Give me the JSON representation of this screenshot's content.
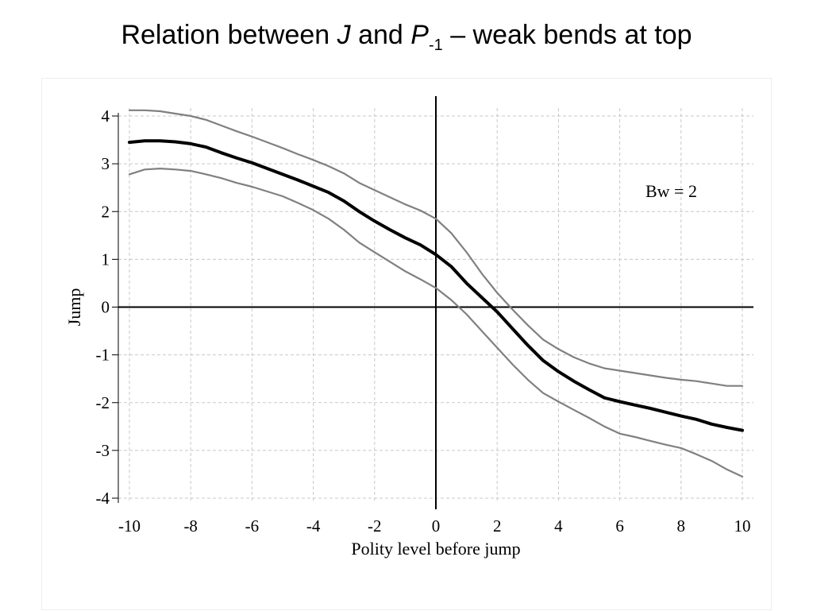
{
  "slide": {
    "title_part1": "Relation between ",
    "title_j": "J",
    "title_part2": " and ",
    "title_p": "P",
    "title_sub": "-1",
    "title_part3": " – weak bends at top"
  },
  "chart_data": {
    "type": "line",
    "title": "",
    "xlabel": "Polity level before jump",
    "ylabel": "Jump",
    "xlim": [
      -10,
      10
    ],
    "ylim": [
      -4,
      4
    ],
    "xticks": [
      -10,
      -8,
      -6,
      -4,
      -2,
      0,
      2,
      4,
      6,
      8,
      10
    ],
    "yticks": [
      4,
      3,
      2,
      1,
      0,
      -1,
      -2,
      -3,
      -4
    ],
    "grid": true,
    "annotation": "Bw = 2",
    "reference_lines": {
      "x": 0,
      "y": 0
    },
    "series": [
      {
        "role": "estimate",
        "color": "#000000",
        "x": [
          -10,
          -9.5,
          -9,
          -8.5,
          -8,
          -7.5,
          -7,
          -6.5,
          -6,
          -5.5,
          -5,
          -4.5,
          -4,
          -3.5,
          -3,
          -2.5,
          -2,
          -1.5,
          -1,
          -0.5,
          0,
          0.5,
          1,
          1.5,
          2,
          2.5,
          3,
          3.5,
          4,
          4.5,
          5,
          5.5,
          6,
          6.5,
          7,
          7.5,
          8,
          8.5,
          9,
          9.5,
          10
        ],
        "y": [
          3.45,
          3.48,
          3.48,
          3.46,
          3.42,
          3.35,
          3.23,
          3.12,
          3.02,
          2.9,
          2.78,
          2.66,
          2.53,
          2.4,
          2.22,
          2.0,
          1.8,
          1.62,
          1.45,
          1.3,
          1.1,
          0.85,
          0.5,
          0.2,
          -0.1,
          -0.45,
          -0.8,
          -1.12,
          -1.35,
          -1.55,
          -1.73,
          -1.9,
          -1.98,
          -2.05,
          -2.12,
          -2.2,
          -2.28,
          -2.35,
          -2.45,
          -2.52,
          -2.58
        ]
      },
      {
        "role": "upper-bound",
        "color": "#808080",
        "x": [
          -10,
          -9.5,
          -9,
          -8.5,
          -8,
          -7.5,
          -7,
          -6.5,
          -6,
          -5.5,
          -5,
          -4.5,
          -4,
          -3.5,
          -3,
          -2.5,
          -2,
          -1.5,
          -1,
          -0.5,
          0,
          0.5,
          1,
          1.5,
          2,
          2.5,
          3,
          3.5,
          4,
          4.5,
          5,
          5.5,
          6,
          6.5,
          7,
          7.5,
          8,
          8.5,
          9,
          9.5,
          10
        ],
        "y": [
          4.12,
          4.12,
          4.1,
          4.05,
          4.0,
          3.92,
          3.8,
          3.68,
          3.57,
          3.45,
          3.33,
          3.2,
          3.08,
          2.95,
          2.8,
          2.6,
          2.45,
          2.3,
          2.15,
          2.02,
          1.85,
          1.55,
          1.15,
          0.7,
          0.3,
          -0.05,
          -0.38,
          -0.68,
          -0.88,
          -1.05,
          -1.18,
          -1.28,
          -1.33,
          -1.38,
          -1.43,
          -1.48,
          -1.52,
          -1.55,
          -1.6,
          -1.65,
          -1.65
        ]
      },
      {
        "role": "lower-bound",
        "color": "#808080",
        "x": [
          -10,
          -9.5,
          -9,
          -8.5,
          -8,
          -7.5,
          -7,
          -6.5,
          -6,
          -5.5,
          -5,
          -4.5,
          -4,
          -3.5,
          -3,
          -2.5,
          -2,
          -1.5,
          -1,
          -0.5,
          0,
          0.5,
          1,
          1.5,
          2,
          2.5,
          3,
          3.5,
          4,
          4.5,
          5,
          5.5,
          6,
          6.5,
          7,
          7.5,
          8,
          8.5,
          9,
          9.5,
          10
        ],
        "y": [
          2.78,
          2.88,
          2.9,
          2.88,
          2.85,
          2.78,
          2.7,
          2.6,
          2.52,
          2.42,
          2.32,
          2.18,
          2.03,
          1.85,
          1.62,
          1.35,
          1.15,
          0.95,
          0.75,
          0.58,
          0.4,
          0.15,
          -0.15,
          -0.5,
          -0.85,
          -1.2,
          -1.52,
          -1.8,
          -1.98,
          -2.15,
          -2.32,
          -2.5,
          -2.65,
          -2.72,
          -2.8,
          -2.88,
          -2.95,
          -3.08,
          -3.22,
          -3.4,
          -3.55
        ]
      }
    ]
  }
}
